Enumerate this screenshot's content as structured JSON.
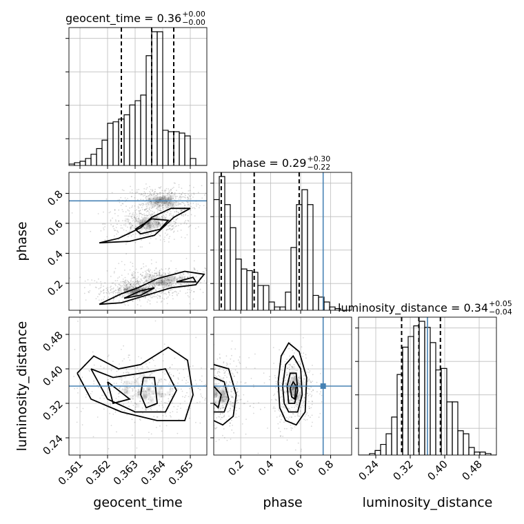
{
  "chart_data": {
    "type": "corner",
    "parameters": [
      "geocent_time",
      "phase",
      "luminosity_distance"
    ],
    "axis_labels": {
      "geocent_time": "geocent_time",
      "phase": "phase",
      "luminosity_distance": "luminosity_distance"
    },
    "ranges": {
      "geocent_time": [
        0.3606,
        0.3656
      ],
      "phase": [
        0.02,
        0.94
      ],
      "luminosity_distance": [
        0.2,
        0.52
      ]
    },
    "ticks": {
      "geocent_time": [
        "0.361",
        "0.362",
        "0.363",
        "0.364",
        "0.365"
      ],
      "phase": [
        "0.2",
        "0.4",
        "0.6",
        "0.8"
      ],
      "luminosity_distance": [
        "0.24",
        "0.32",
        "0.40",
        "0.48"
      ]
    },
    "truths": {
      "geocent_time": null,
      "phase": 0.75,
      "luminosity_distance": 0.36
    },
    "grid": true,
    "titles": [
      {
        "param": "geocent_time",
        "label": "geocent_time = 0.36",
        "plus": "+0.00",
        "minus": "−0.00"
      },
      {
        "param": "phase",
        "label": "phase = 0.29",
        "plus": "+0.30",
        "minus": "−0.22"
      },
      {
        "param": "luminosity_distance",
        "label": "luminosity_distance = 0.34",
        "plus": "+0.05",
        "minus": "−0.04"
      }
    ],
    "quantiles": {
      "geocent_time": [
        0.3625,
        0.3636,
        0.3644
      ],
      "phase": [
        0.07,
        0.29,
        0.59
      ],
      "luminosity_distance": [
        0.3,
        0.34,
        0.39
      ]
    },
    "histograms": {
      "geocent_time": {
        "edges": [
          0.3606,
          0.3608,
          0.361,
          0.3612,
          0.3614,
          0.3616,
          0.3618,
          0.362,
          0.3622,
          0.3624,
          0.3626,
          0.3628,
          0.363,
          0.3632,
          0.3634,
          0.3636,
          0.3638,
          0.364,
          0.3642,
          0.3644,
          0.3646,
          0.3648,
          0.365,
          0.3652,
          0.3654,
          0.3656
        ],
        "counts": [
          1,
          2,
          3,
          5,
          8,
          12,
          18,
          30,
          31,
          33,
          36,
          43,
          46,
          50,
          78,
          95,
          95,
          25,
          24,
          24,
          23,
          21,
          5,
          0,
          0
        ]
      },
      "phase": {
        "edges": [
          0.02,
          0.0568,
          0.0936,
          0.1304,
          0.1672,
          0.204,
          0.2408,
          0.2776,
          0.3144,
          0.3512,
          0.388,
          0.4248,
          0.4616,
          0.4984,
          0.5352,
          0.572,
          0.6088,
          0.6456,
          0.6824,
          0.7192,
          0.756,
          0.7928,
          0.8296,
          0.8664,
          0.9032,
          0.94
        ],
        "counts": [
          67,
          81,
          64,
          50,
          31,
          25,
          24,
          23,
          15,
          15,
          5,
          2,
          2,
          11,
          38,
          64,
          73,
          64,
          9,
          8,
          5,
          2,
          1,
          0,
          0
        ]
      },
      "luminosity_distance": {
        "edges": [
          0.2,
          0.2128,
          0.2256,
          0.2384,
          0.2512,
          0.264,
          0.2768,
          0.2896,
          0.3024,
          0.3152,
          0.328,
          0.3408,
          0.3536,
          0.3664,
          0.3792,
          0.392,
          0.4048,
          0.4176,
          0.4304,
          0.4432,
          0.456,
          0.4688,
          0.4816,
          0.4944,
          0.5072,
          0.52
        ],
        "counts": [
          0,
          0,
          1,
          3,
          7,
          14,
          25,
          53,
          71,
          78,
          85,
          88,
          84,
          74,
          56,
          57,
          35,
          35,
          16,
          14,
          5,
          2,
          2,
          1,
          0
        ]
      }
    },
    "scatter_2d": [
      {
        "x": "geocent_time",
        "y": "phase",
        "clusters": [
          {
            "x": 0.3635,
            "y": 0.6,
            "sx": 0.0008,
            "sy": 0.06
          },
          {
            "x": 0.364,
            "y": 0.75,
            "sx": 0.0007,
            "sy": 0.05
          },
          {
            "x": 0.364,
            "y": 0.22,
            "sx": 0.001,
            "sy": 0.05
          },
          {
            "x": 0.363,
            "y": 0.15,
            "sx": 0.0007,
            "sy": 0.04
          }
        ]
      },
      {
        "x": "geocent_time",
        "y": "luminosity_distance",
        "clusters": [
          {
            "x": 0.3633,
            "y": 0.35,
            "sx": 0.0012,
            "sy": 0.045
          }
        ]
      },
      {
        "x": "phase",
        "y": "luminosity_distance",
        "clusters": [
          {
            "x": 0.56,
            "y": 0.35,
            "sx": 0.07,
            "sy": 0.045
          },
          {
            "x": 0.06,
            "y": 0.34,
            "sx": 0.1,
            "sy": 0.045
          }
        ]
      }
    ],
    "contours_2d": [
      {
        "x": "geocent_time",
        "y": "phase",
        "paths": [
          [
            [
              0.3617,
              0.47
            ],
            [
              0.3624,
              0.5
            ],
            [
              0.3632,
              0.57
            ],
            [
              0.3636,
              0.64
            ],
            [
              0.3643,
              0.7
            ],
            [
              0.365,
              0.7
            ],
            [
              0.3644,
              0.64
            ],
            [
              0.364,
              0.57
            ],
            [
              0.3637,
              0.52
            ],
            [
              0.3628,
              0.48
            ],
            [
              0.3617,
              0.47
            ]
          ],
          [
            [
              0.363,
              0.56
            ],
            [
              0.3636,
              0.63
            ],
            [
              0.3642,
              0.62
            ],
            [
              0.3639,
              0.56
            ],
            [
              0.3632,
              0.53
            ],
            [
              0.363,
              0.56
            ]
          ],
          [
            [
              0.3617,
              0.06
            ],
            [
              0.3625,
              0.13
            ],
            [
              0.3631,
              0.17
            ],
            [
              0.3638,
              0.23
            ],
            [
              0.3648,
              0.28
            ],
            [
              0.3655,
              0.26
            ],
            [
              0.3652,
              0.19
            ],
            [
              0.3643,
              0.17
            ],
            [
              0.3634,
              0.12
            ],
            [
              0.3625,
              0.07
            ],
            [
              0.3617,
              0.06
            ]
          ],
          [
            [
              0.3626,
              0.1
            ],
            [
              0.3632,
              0.15
            ],
            [
              0.3637,
              0.17
            ],
            [
              0.3632,
              0.12
            ],
            [
              0.3626,
              0.1
            ]
          ],
          [
            [
              0.3645,
              0.21
            ],
            [
              0.3651,
              0.24
            ],
            [
              0.3652,
              0.21
            ],
            [
              0.3645,
              0.21
            ]
          ]
        ]
      },
      {
        "x": "geocent_time",
        "y": "luminosity_distance",
        "paths": [
          [
            [
              0.3609,
              0.39
            ],
            [
              0.3615,
              0.43
            ],
            [
              0.3624,
              0.4
            ],
            [
              0.3632,
              0.41
            ],
            [
              0.3642,
              0.45
            ],
            [
              0.3649,
              0.42
            ],
            [
              0.3651,
              0.34
            ],
            [
              0.3648,
              0.28
            ],
            [
              0.3638,
              0.28
            ],
            [
              0.3625,
              0.3
            ],
            [
              0.3614,
              0.33
            ],
            [
              0.3609,
              0.39
            ]
          ],
          [
            [
              0.3614,
              0.4
            ],
            [
              0.3622,
              0.38
            ],
            [
              0.3632,
              0.39
            ],
            [
              0.3641,
              0.4
            ],
            [
              0.3645,
              0.35
            ],
            [
              0.3641,
              0.3
            ],
            [
              0.363,
              0.3
            ],
            [
              0.362,
              0.33
            ],
            [
              0.3614,
              0.4
            ]
          ],
          [
            [
              0.362,
              0.37
            ],
            [
              0.3628,
              0.33
            ],
            [
              0.3622,
              0.32
            ],
            [
              0.362,
              0.37
            ]
          ],
          [
            [
              0.3633,
              0.38
            ],
            [
              0.3637,
              0.38
            ],
            [
              0.3638,
              0.32
            ],
            [
              0.3634,
              0.31
            ],
            [
              0.3632,
              0.34
            ],
            [
              0.3633,
              0.38
            ]
          ]
        ]
      },
      {
        "x": "phase",
        "y": "luminosity_distance",
        "paths": [
          [
            [
              0.45,
              0.37
            ],
            [
              0.47,
              0.43
            ],
            [
              0.52,
              0.46
            ],
            [
              0.59,
              0.44
            ],
            [
              0.64,
              0.38
            ],
            [
              0.63,
              0.3
            ],
            [
              0.57,
              0.27
            ],
            [
              0.5,
              0.28
            ],
            [
              0.46,
              0.31
            ],
            [
              0.45,
              0.37
            ]
          ],
          [
            [
              0.48,
              0.36
            ],
            [
              0.5,
              0.41
            ],
            [
              0.55,
              0.43
            ],
            [
              0.6,
              0.4
            ],
            [
              0.61,
              0.34
            ],
            [
              0.58,
              0.3
            ],
            [
              0.52,
              0.3
            ],
            [
              0.49,
              0.32
            ],
            [
              0.48,
              0.36
            ]
          ],
          [
            [
              0.51,
              0.36
            ],
            [
              0.53,
              0.39
            ],
            [
              0.57,
              0.39
            ],
            [
              0.58,
              0.35
            ],
            [
              0.56,
              0.32
            ],
            [
              0.52,
              0.32
            ],
            [
              0.51,
              0.36
            ]
          ],
          [
            [
              0.53,
              0.355
            ],
            [
              0.55,
              0.37
            ],
            [
              0.57,
              0.36
            ],
            [
              0.56,
              0.33
            ],
            [
              0.54,
              0.335
            ],
            [
              0.53,
              0.355
            ]
          ],
          [
            [
              0.02,
              0.41
            ],
            [
              0.12,
              0.4
            ],
            [
              0.17,
              0.34
            ],
            [
              0.15,
              0.29
            ],
            [
              0.08,
              0.27
            ],
            [
              0.02,
              0.28
            ]
          ],
          [
            [
              0.02,
              0.38
            ],
            [
              0.09,
              0.37
            ],
            [
              0.12,
              0.33
            ],
            [
              0.09,
              0.3
            ],
            [
              0.02,
              0.3
            ]
          ],
          [
            [
              0.02,
              0.36
            ],
            [
              0.07,
              0.34
            ],
            [
              0.05,
              0.31
            ],
            [
              0.02,
              0.32
            ]
          ]
        ]
      }
    ]
  }
}
